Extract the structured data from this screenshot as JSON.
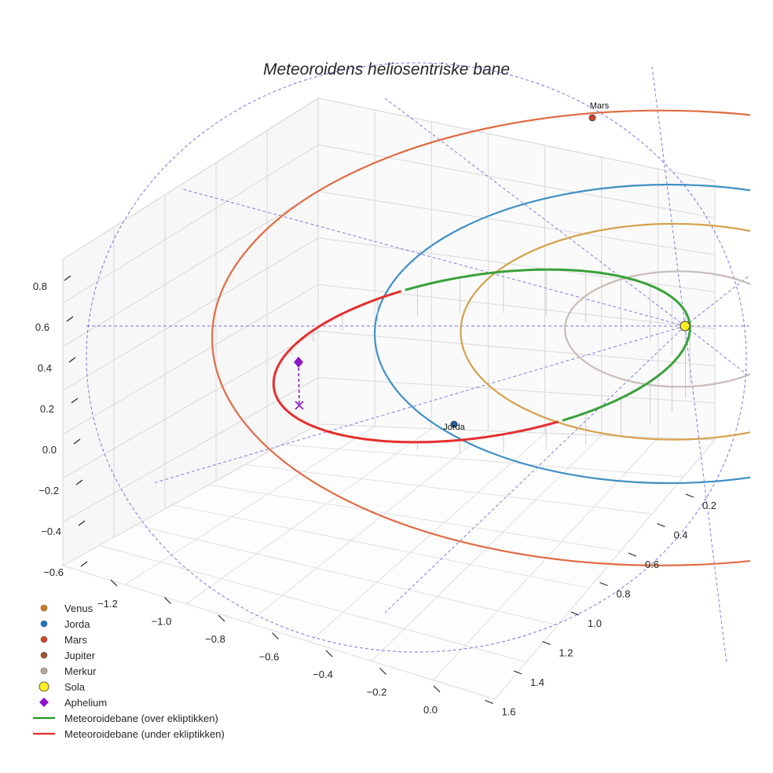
{
  "chart_data": {
    "type": "line3d",
    "title": "Meteoroidens heliosentriske bane",
    "axes": {
      "z_ticks": [
        "0.8",
        "0.6",
        "0.4",
        "0.2",
        "0.0",
        "−0.2",
        "−0.4",
        "−0.6"
      ],
      "x_ticks": [
        "−1.2",
        "−1.0",
        "−0.8",
        "−0.6",
        "−0.4",
        "−0.2",
        "0.0"
      ],
      "y_ticks": [
        "0.2",
        "0.4",
        "0.6",
        "0.8",
        "1.0",
        "1.2",
        "1.4",
        "1.6"
      ]
    },
    "orbits": [
      {
        "name": "Merkur",
        "semi_major_au": 0.387,
        "color": "#c8bdb8"
      },
      {
        "name": "Venus",
        "semi_major_au": 0.723,
        "color": "#d4a24c"
      },
      {
        "name": "Jorda",
        "semi_major_au": 1.0,
        "color": "#3f8fc4"
      },
      {
        "name": "Mars",
        "semi_major_au": 1.524,
        "color": "#e06c45"
      }
    ],
    "planet_labels": [
      {
        "name": "Mars",
        "label": "Mars",
        "color": "#d1472a"
      },
      {
        "name": "Jorda",
        "label": "Jorda",
        "color": "#1f5fa5"
      }
    ],
    "sun": {
      "label": "Sola",
      "color": "#ffee22"
    },
    "aphelium": {
      "label": "Aphelium",
      "color": "#8a15c9"
    },
    "meteoroid": {
      "above_color": "#3aa13a",
      "below_color": "#e62e2e"
    },
    "legend": [
      {
        "marker": "circle",
        "color": "#d27a1f",
        "label": "Venus"
      },
      {
        "marker": "circle",
        "color": "#1f77c4",
        "label": "Jorda"
      },
      {
        "marker": "circle",
        "color": "#d1472a",
        "label": "Mars"
      },
      {
        "marker": "circle",
        "color": "#a0522d",
        "label": "Jupiter"
      },
      {
        "marker": "circle",
        "color": "#bca79f",
        "label": "Merkur"
      },
      {
        "marker": "circle-large",
        "color": "#ffee22",
        "label": "Sola"
      },
      {
        "marker": "diamond",
        "color": "#8a15c9",
        "label": "Aphelium"
      },
      {
        "marker": "line",
        "color": "#1f9a1f",
        "label": "Meteoroidebane (over ekliptikken)"
      },
      {
        "marker": "line",
        "color": "#e62e2e",
        "label": "Meteoroidebane (under ekliptikken)"
      }
    ]
  }
}
